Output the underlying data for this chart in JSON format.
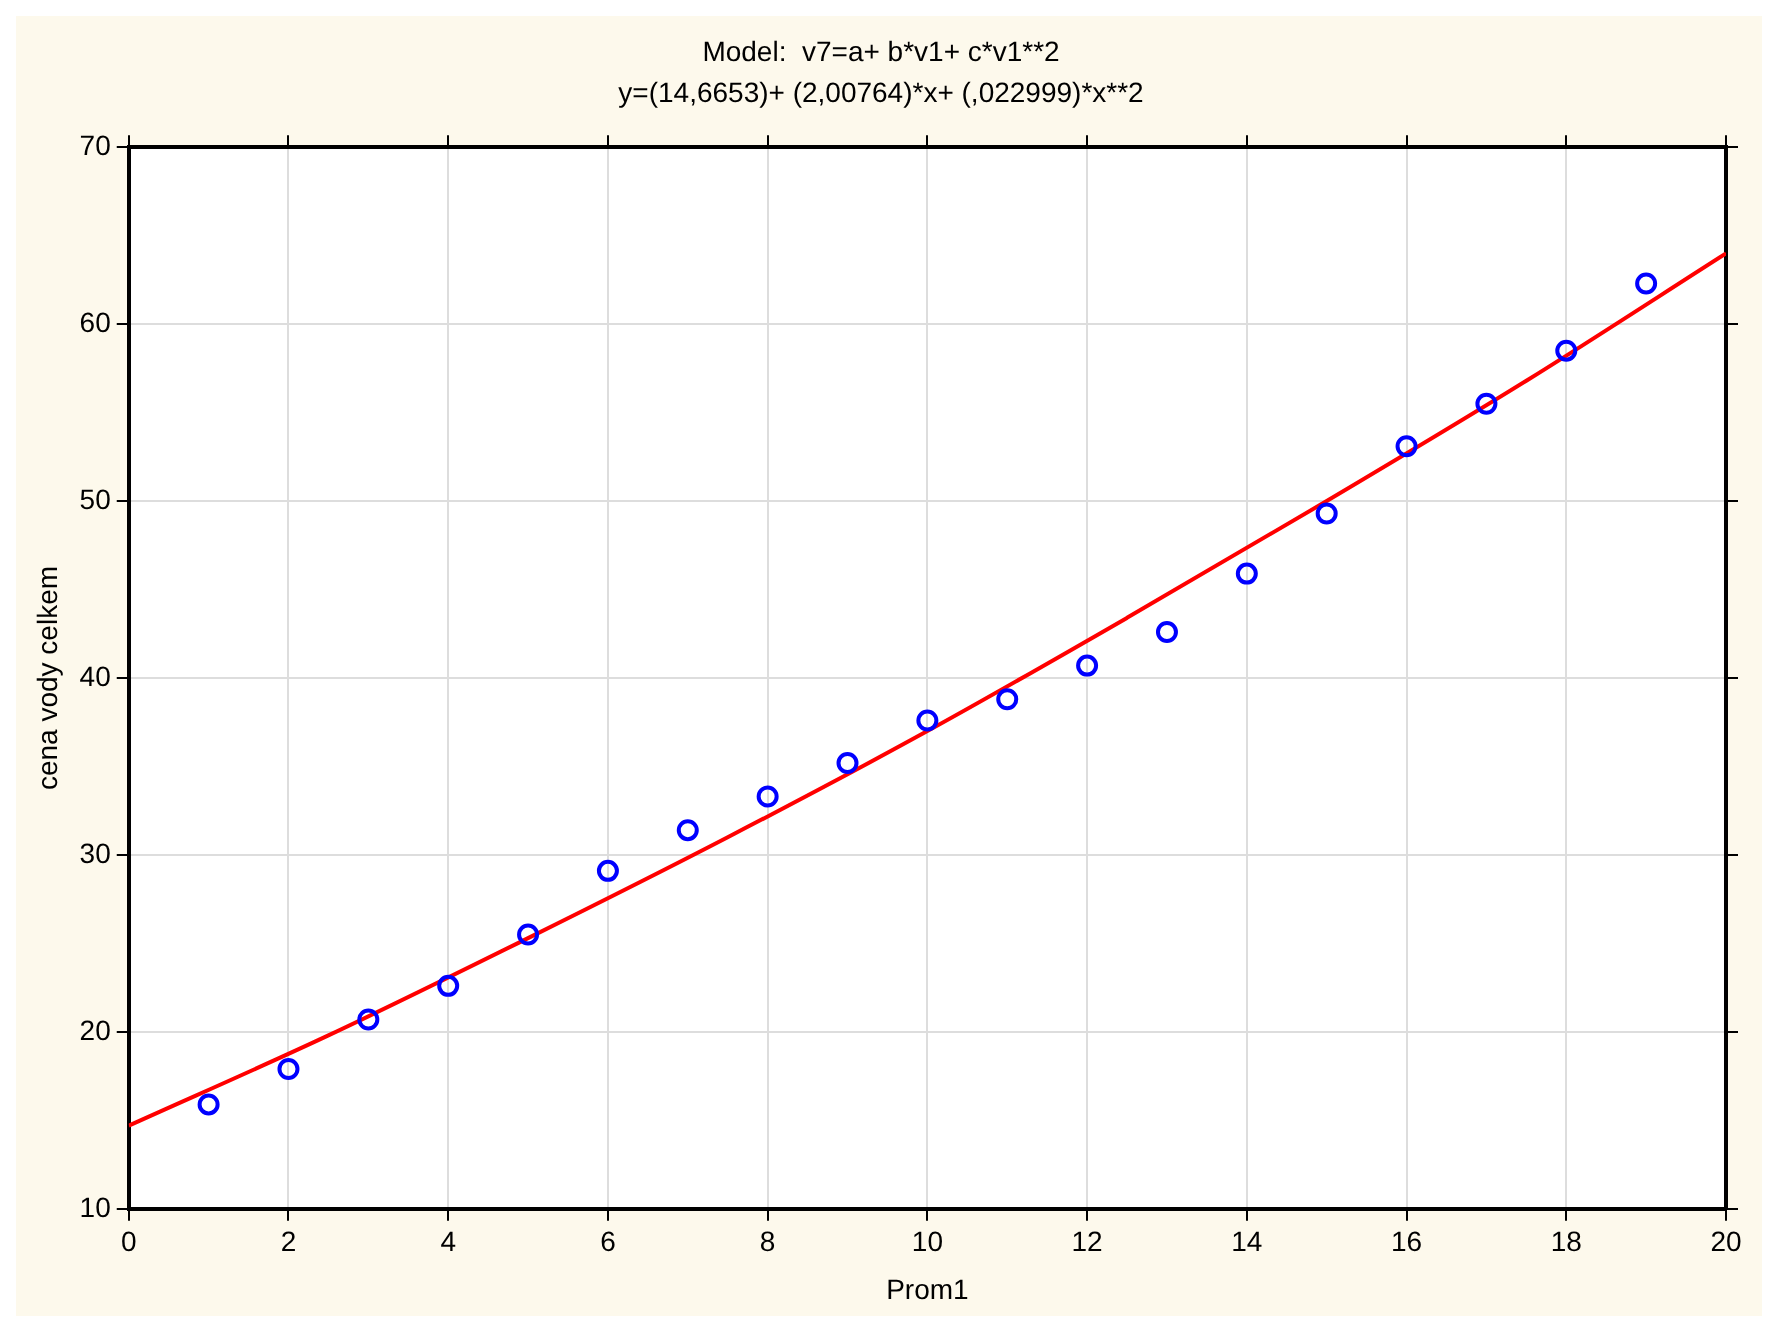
{
  "chart_data": {
    "type": "scatter",
    "title": "Model:  v7=a+ b*v1+ c*v1**2",
    "subtitle": "y=(14,6653)+ (2,00764)*x+ (,022999)*x**2",
    "xlabel": "Prom1",
    "ylabel": "cena vody celkem",
    "x": [
      1,
      2,
      3,
      4,
      5,
      6,
      7,
      8,
      9,
      10,
      11,
      12,
      13,
      14,
      15,
      16,
      17,
      18,
      19
    ],
    "series": [
      {
        "color": "#0000ff",
        "marker": "circle",
        "values": [
          15.9,
          17.9,
          20.7,
          22.6,
          25.5,
          29.1,
          31.4,
          33.3,
          35.2,
          37.6,
          38.8,
          40.7,
          42.6,
          45.9,
          49.3,
          53.1,
          55.5,
          58.5,
          62.3
        ]
      },
      {
        "type": "line",
        "color": "#ff0000",
        "marker": "none",
        "x": [
          0,
          2.5,
          5,
          7.5,
          10,
          12.5,
          15,
          17.5,
          20
        ],
        "values": [
          14.7,
          19.8,
          25.3,
          31.0,
          37.0,
          43.4,
          50.0,
          56.8,
          64.0
        ]
      }
    ],
    "xlim": [
      0,
      20
    ],
    "xticks": [
      0,
      2,
      4,
      6,
      8,
      10,
      12,
      14,
      16,
      18,
      20
    ],
    "ylim": [
      10,
      70
    ],
    "yticks": [
      10,
      20,
      30,
      40,
      50,
      60,
      70
    ],
    "grid": true,
    "legend": false
  }
}
